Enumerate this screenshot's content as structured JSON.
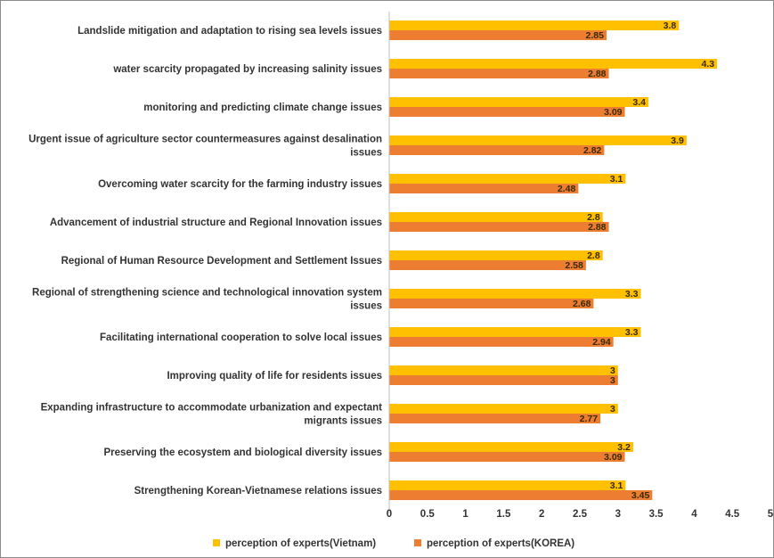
{
  "chart_data": {
    "type": "bar",
    "orientation": "horizontal",
    "title": "",
    "xlabel": "",
    "ylabel": "",
    "xlim": [
      0,
      5
    ],
    "x_ticks": [
      "0",
      "0.5",
      "1",
      "1.5",
      "2",
      "2.5",
      "3",
      "3.5",
      "4",
      "4.5",
      "5"
    ],
    "grid": false,
    "legend_position": "bottom",
    "categories": [
      "Landslide mitigation and adaptation to rising sea levels issues",
      "water scarcity propagated by increasing salinity issues",
      "monitoring and predicting climate change issues",
      "Urgent issue of agriculture sector countermeasures against desalination issues",
      "Overcoming water scarcity for the farming industry issues",
      "Advancement of industrial structure and Regional Innovation issues",
      "Regional of Human Resource Development and Settlement Issues",
      "Regional of strengthening science and technological innovation system issues",
      "Facilitating international cooperation to solve local issues",
      "Improving quality of life for residents issues",
      "Expanding infrastructure to accommodate urbanization and expectant migrants issues",
      "Preserving the ecosystem and biological diversity issues",
      "Strengthening Korean-Vietnamese  relations issues"
    ],
    "series": [
      {
        "name": "perception of experts(Vietnam)",
        "color": "#FFC000",
        "values": [
          3.8,
          4.3,
          3.4,
          3.9,
          3.1,
          2.8,
          2.8,
          3.3,
          3.3,
          3,
          3,
          3.2,
          3.1
        ],
        "labels": [
          "3.8",
          "4.3",
          "3.4",
          "3.9",
          "3.1",
          "2.8",
          "2.8",
          "3.3",
          "3.3",
          "3",
          "3",
          "3.2",
          "3.1"
        ]
      },
      {
        "name": "perception of experts(KOREA)",
        "color": "#ED7D31",
        "values": [
          2.85,
          2.88,
          3.09,
          2.82,
          2.48,
          2.88,
          2.58,
          2.68,
          2.94,
          3,
          2.77,
          3.09,
          3.45
        ],
        "labels": [
          "2.85",
          "2.88",
          "3.09",
          "2.82",
          "2.48",
          "2.88",
          "2.58",
          "2.68",
          "2.94",
          "3",
          "2.77",
          "3.09",
          "3.45"
        ]
      }
    ]
  }
}
